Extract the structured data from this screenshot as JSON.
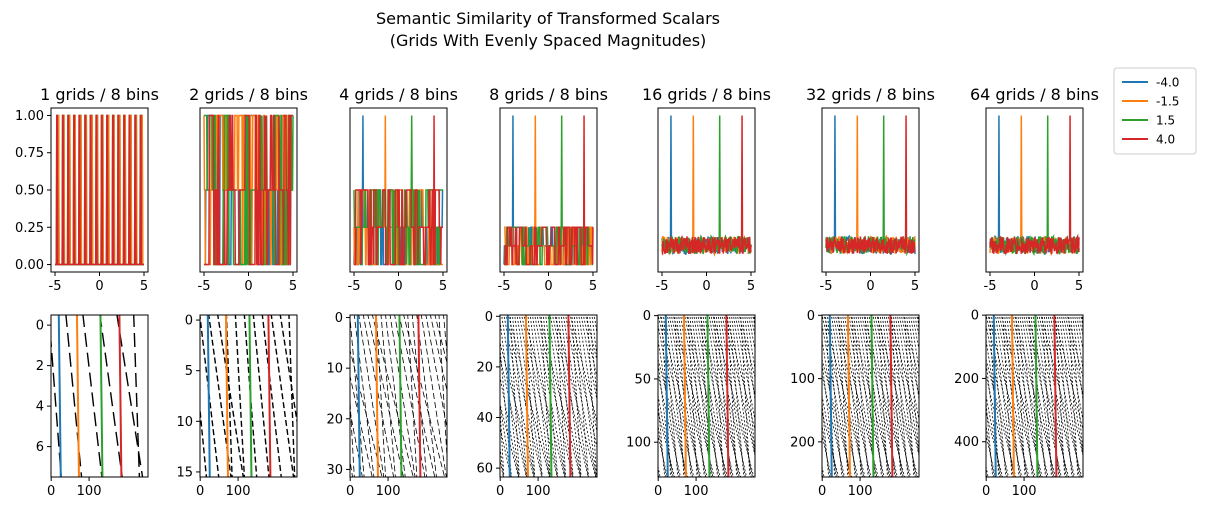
{
  "chart_data": {
    "type": "line",
    "title": "Semantic Similarity of Transformed Scalars",
    "subtitle": "(Grids With Evenly Spaced Magnitudes)",
    "series": [
      {
        "name": "-4.0",
        "color": "#1f77b4"
      },
      {
        "name": "-1.5",
        "color": "#ff7f0e"
      },
      {
        "name": "1.5",
        "color": "#2ca02c"
      },
      {
        "name": "4.0",
        "color": "#d62728"
      }
    ],
    "legend": {
      "placement": "top-right, outside the plots"
    },
    "bins": 8,
    "heatmap_columns": 256,
    "panels": [
      {
        "grids": 1,
        "title": "1 grids / 8 bins",
        "noise_level": 0,
        "xlim": [
          -5,
          5
        ],
        "xticks": [
          "-5",
          "0",
          "5"
        ],
        "ylim": [
          0,
          1
        ],
        "yticks": [
          "0.00",
          "0.25",
          "0.50",
          "0.75",
          "1.00"
        ],
        "heatmap_rows": 8,
        "heatmap_yticks": [
          0,
          2,
          4,
          6
        ],
        "heatmap_xticks": [
          0,
          100
        ]
      },
      {
        "grids": 2,
        "title": "2 grids / 8 bins",
        "noise_level": 0.5,
        "xlim": [
          -5,
          5
        ],
        "xticks": [
          "-5",
          "0",
          "5"
        ],
        "ylim": [
          0,
          1
        ],
        "yticks": [],
        "heatmap_rows": 16,
        "heatmap_yticks": [
          0,
          5,
          10,
          15
        ],
        "heatmap_xticks": [
          0,
          100
        ]
      },
      {
        "grids": 4,
        "title": "4 grids / 8 bins",
        "noise_level": 0.25,
        "xlim": [
          -5,
          5
        ],
        "xticks": [
          "-5",
          "0",
          "5"
        ],
        "ylim": [
          0,
          1
        ],
        "yticks": [],
        "heatmap_rows": 32,
        "heatmap_yticks": [
          0,
          10,
          20,
          30
        ],
        "heatmap_xticks": [
          0,
          100
        ]
      },
      {
        "grids": 8,
        "title": "8 grids / 8 bins",
        "noise_level": 0.125,
        "xlim": [
          -5,
          5
        ],
        "xticks": [
          "-5",
          "0",
          "5"
        ],
        "ylim": [
          0,
          1
        ],
        "yticks": [],
        "heatmap_rows": 64,
        "heatmap_yticks": [
          0,
          20,
          40,
          60
        ],
        "heatmap_xticks": [
          0,
          100
        ]
      },
      {
        "grids": 16,
        "title": "16 grids / 8 bins",
        "noise_level": 0.125,
        "xlim": [
          -5,
          5
        ],
        "xticks": [
          "-5",
          "0",
          "5"
        ],
        "ylim": [
          0,
          1
        ],
        "yticks": [],
        "heatmap_rows": 128,
        "heatmap_yticks": [
          0,
          50,
          100
        ],
        "heatmap_xticks": [
          0,
          100
        ]
      },
      {
        "grids": 32,
        "title": "32 grids / 8 bins",
        "noise_level": 0.125,
        "xlim": [
          -5,
          5
        ],
        "xticks": [
          "-5",
          "0",
          "5"
        ],
        "ylim": [
          0,
          1
        ],
        "yticks": [],
        "heatmap_rows": 256,
        "heatmap_yticks": [
          0,
          100,
          200
        ],
        "heatmap_xticks": [
          0,
          100
        ]
      },
      {
        "grids": 64,
        "title": "64 grids / 8 bins",
        "noise_level": 0.125,
        "xlim": [
          -5,
          5
        ],
        "xticks": [
          "-5",
          "0",
          "5"
        ],
        "ylim": [
          0,
          1
        ],
        "yticks": [],
        "heatmap_rows": 512,
        "heatmap_yticks": [
          0,
          200,
          400
        ],
        "heatmap_xticks": [
          0,
          100
        ]
      }
    ]
  }
}
